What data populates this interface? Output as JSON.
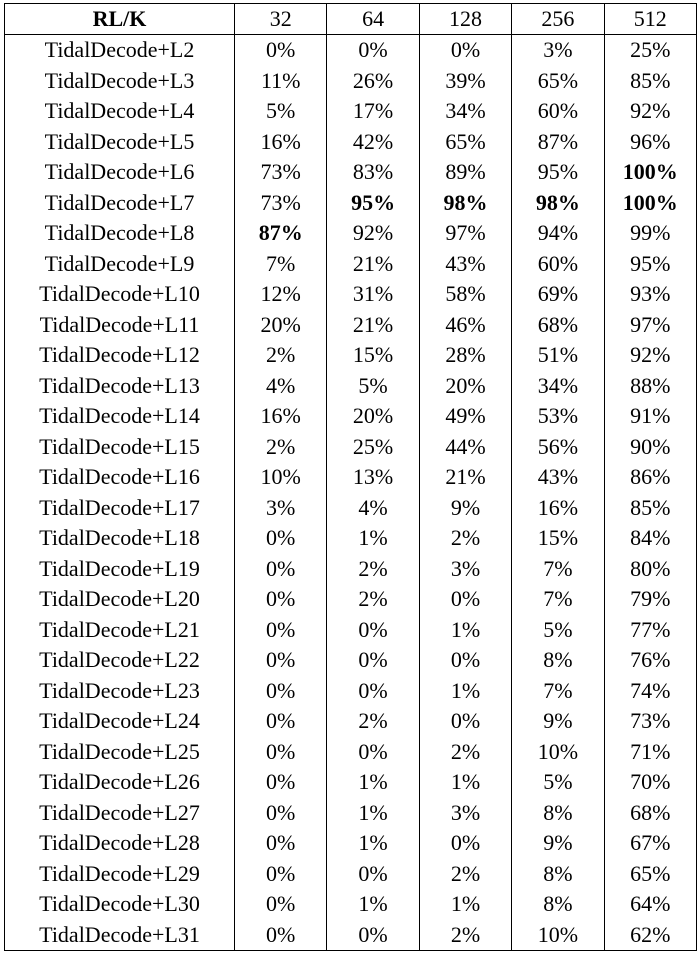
{
  "table": {
    "headers": [
      "RL/K",
      "32",
      "64",
      "128",
      "256",
      "512"
    ],
    "rows": [
      {
        "label": "TidalDecode+L2",
        "values": [
          "0%",
          "0%",
          "0%",
          "3%",
          "25%"
        ],
        "bold": []
      },
      {
        "label": "TidalDecode+L3",
        "values": [
          "11%",
          "26%",
          "39%",
          "65%",
          "85%"
        ],
        "bold": []
      },
      {
        "label": "TidalDecode+L4",
        "values": [
          "5%",
          "17%",
          "34%",
          "60%",
          "92%"
        ],
        "bold": []
      },
      {
        "label": "TidalDecode+L5",
        "values": [
          "16%",
          "42%",
          "65%",
          "87%",
          "96%"
        ],
        "bold": []
      },
      {
        "label": "TidalDecode+L6",
        "values": [
          "73%",
          "83%",
          "89%",
          "95%",
          "100%"
        ],
        "bold": [
          4
        ]
      },
      {
        "label": "TidalDecode+L7",
        "values": [
          "73%",
          "95%",
          "98%",
          "98%",
          "100%"
        ],
        "bold": [
          1,
          2,
          3,
          4
        ]
      },
      {
        "label": "TidalDecode+L8",
        "values": [
          "87%",
          "92%",
          "97%",
          "94%",
          "99%"
        ],
        "bold": [
          0
        ]
      },
      {
        "label": "TidalDecode+L9",
        "values": [
          "7%",
          "21%",
          "43%",
          "60%",
          "95%"
        ],
        "bold": []
      },
      {
        "label": "TidalDecode+L10",
        "values": [
          "12%",
          "31%",
          "58%",
          "69%",
          "93%"
        ],
        "bold": []
      },
      {
        "label": "TidalDecode+L11",
        "values": [
          "20%",
          "21%",
          "46%",
          "68%",
          "97%"
        ],
        "bold": []
      },
      {
        "label": "TidalDecode+L12",
        "values": [
          "2%",
          "15%",
          "28%",
          "51%",
          "92%"
        ],
        "bold": []
      },
      {
        "label": "TidalDecode+L13",
        "values": [
          "4%",
          "5%",
          "20%",
          "34%",
          "88%"
        ],
        "bold": []
      },
      {
        "label": "TidalDecode+L14",
        "values": [
          "16%",
          "20%",
          "49%",
          "53%",
          "91%"
        ],
        "bold": []
      },
      {
        "label": "TidalDecode+L15",
        "values": [
          "2%",
          "25%",
          "44%",
          "56%",
          "90%"
        ],
        "bold": []
      },
      {
        "label": "TidalDecode+L16",
        "values": [
          "10%",
          "13%",
          "21%",
          "43%",
          "86%"
        ],
        "bold": []
      },
      {
        "label": "TidalDecode+L17",
        "values": [
          "3%",
          "4%",
          "9%",
          "16%",
          "85%"
        ],
        "bold": []
      },
      {
        "label": "TidalDecode+L18",
        "values": [
          "0%",
          "1%",
          "2%",
          "15%",
          "84%"
        ],
        "bold": []
      },
      {
        "label": "TidalDecode+L19",
        "values": [
          "0%",
          "2%",
          "3%",
          "7%",
          "80%"
        ],
        "bold": []
      },
      {
        "label": "TidalDecode+L20",
        "values": [
          "0%",
          "2%",
          "0%",
          "7%",
          "79%"
        ],
        "bold": []
      },
      {
        "label": "TidalDecode+L21",
        "values": [
          "0%",
          "0%",
          "1%",
          "5%",
          "77%"
        ],
        "bold": []
      },
      {
        "label": "TidalDecode+L22",
        "values": [
          "0%",
          "0%",
          "0%",
          "8%",
          "76%"
        ],
        "bold": []
      },
      {
        "label": "TidalDecode+L23",
        "values": [
          "0%",
          "0%",
          "1%",
          "7%",
          "74%"
        ],
        "bold": []
      },
      {
        "label": "TidalDecode+L24",
        "values": [
          "0%",
          "2%",
          "0%",
          "9%",
          "73%"
        ],
        "bold": []
      },
      {
        "label": "TidalDecode+L25",
        "values": [
          "0%",
          "0%",
          "2%",
          "10%",
          "71%"
        ],
        "bold": []
      },
      {
        "label": "TidalDecode+L26",
        "values": [
          "0%",
          "1%",
          "1%",
          "5%",
          "70%"
        ],
        "bold": []
      },
      {
        "label": "TidalDecode+L27",
        "values": [
          "0%",
          "1%",
          "3%",
          "8%",
          "68%"
        ],
        "bold": []
      },
      {
        "label": "TidalDecode+L28",
        "values": [
          "0%",
          "1%",
          "0%",
          "9%",
          "67%"
        ],
        "bold": []
      },
      {
        "label": "TidalDecode+L29",
        "values": [
          "0%",
          "0%",
          "2%",
          "8%",
          "65%"
        ],
        "bold": []
      },
      {
        "label": "TidalDecode+L30",
        "values": [
          "0%",
          "1%",
          "1%",
          "8%",
          "64%"
        ],
        "bold": []
      },
      {
        "label": "TidalDecode+L31",
        "values": [
          "0%",
          "0%",
          "2%",
          "10%",
          "62%"
        ],
        "bold": []
      }
    ]
  }
}
